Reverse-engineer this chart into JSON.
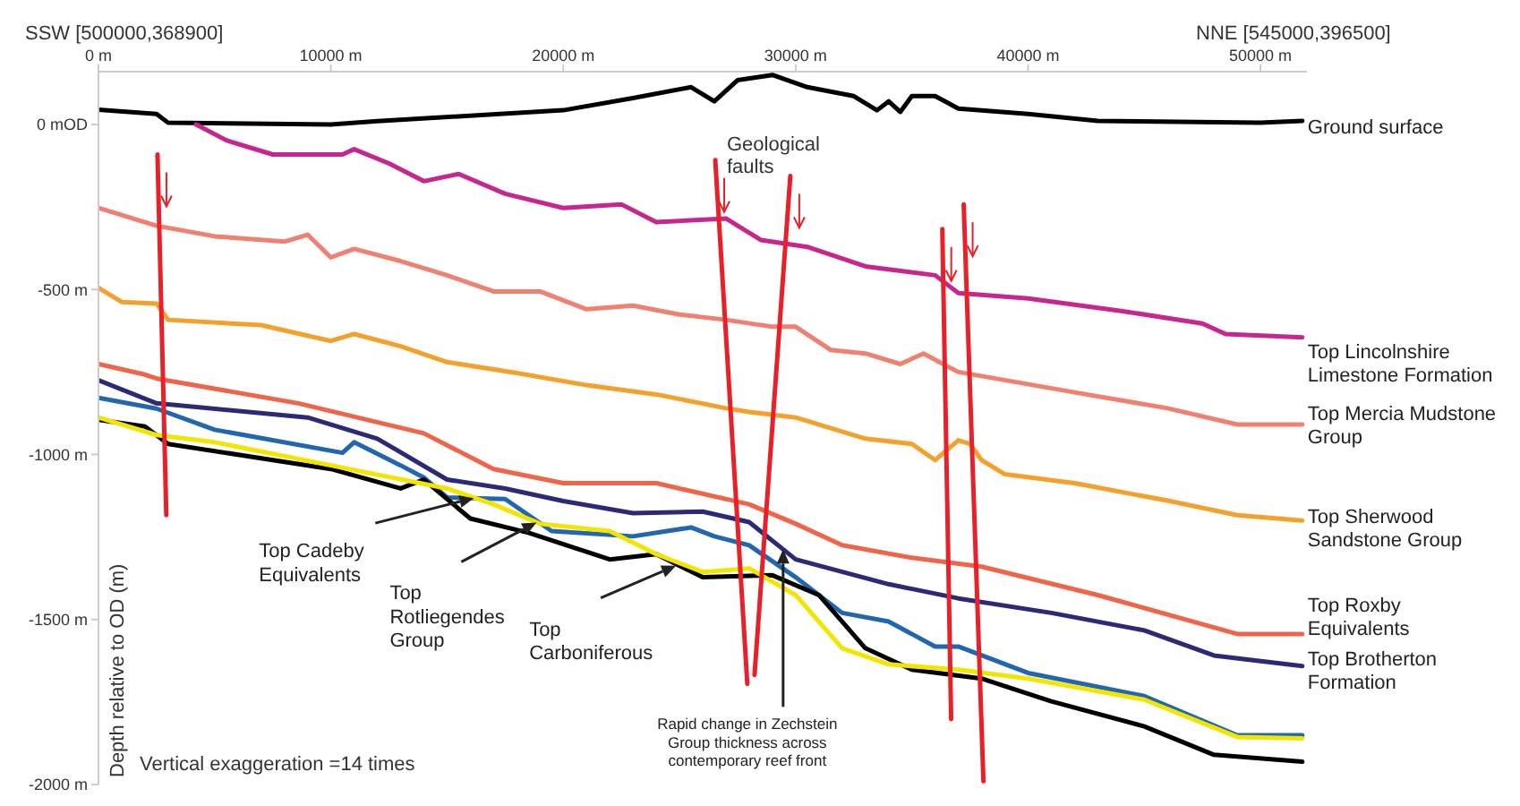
{
  "chart_data": {
    "type": "line",
    "ylabel": "Depth relative to OD (m)",
    "xlim": [
      0,
      52000
    ],
    "xticks": [
      {
        "value": 0,
        "label": "0 m"
      },
      {
        "value": 10000,
        "label": "10000 m"
      },
      {
        "value": 20000,
        "label": "20000 m"
      },
      {
        "value": 30000,
        "label": "30000 m"
      },
      {
        "value": 40000,
        "label": "40000 m"
      },
      {
        "value": 50000,
        "label": "50000 m"
      }
    ],
    "ylim": [
      -2000,
      160
    ],
    "yticks": [
      {
        "value": 0,
        "label": "0 mOD"
      },
      {
        "value": -500,
        "label": "-500 m"
      },
      {
        "value": -1000,
        "label": "-1000 m"
      },
      {
        "value": -1500,
        "label": "-1500 m"
      },
      {
        "value": -2000,
        "label": "-2000 m"
      }
    ],
    "series": [
      {
        "name": "Ground surface",
        "color": "#000000",
        "x": [
          0,
          2500,
          3000,
          10000,
          12000,
          20000,
          23000,
          25500,
          26500,
          27500,
          29000,
          30500,
          32500,
          33500,
          34000,
          34500,
          35000,
          36000,
          37000,
          40000,
          43000,
          50000,
          51800
        ],
        "values": [
          45,
          32,
          5,
          0,
          10,
          43,
          80,
          113,
          70,
          134,
          150,
          113,
          86,
          43,
          70,
          38,
          86,
          86,
          48,
          32,
          11,
          5,
          11
        ]
      },
      {
        "name": "Top Lincolnshire Limestone Formation",
        "color": "#c8268f",
        "x": [
          4200,
          5500,
          7500,
          10500,
          11000,
          12500,
          14000,
          15500,
          17500,
          20000,
          22500,
          24000,
          27000,
          28500,
          30500,
          33000,
          36000,
          37000,
          40000,
          44000,
          47500,
          48500,
          51800
        ],
        "values": [
          0,
          -48,
          -91,
          -91,
          -75,
          -118,
          -172,
          -150,
          -210,
          -253,
          -242,
          -296,
          -285,
          -350,
          -371,
          -430,
          -457,
          -511,
          -527,
          -565,
          -603,
          -635,
          -645
        ]
      },
      {
        "name": "Top Mercia Mudstone Group",
        "color": "#f08070",
        "x": [
          0,
          2500,
          5000,
          8000,
          9000,
          10000,
          11000,
          13000,
          15000,
          17000,
          19000,
          21000,
          23000,
          25000,
          27000,
          29000,
          30000,
          31500,
          33000,
          34500,
          35500,
          36500,
          37000,
          42500,
          46000,
          49000,
          51800
        ],
        "values": [
          -253,
          -307,
          -339,
          -355,
          -334,
          -403,
          -377,
          -414,
          -457,
          -506,
          -506,
          -560,
          -549,
          -576,
          -592,
          -613,
          -613,
          -683,
          -694,
          -726,
          -694,
          -732,
          -750,
          -818,
          -860,
          -909,
          -909
        ]
      },
      {
        "name": "Top Sherwood Sandstone Group",
        "color": "#f5a02a",
        "x": [
          0,
          1000,
          2500,
          3000,
          7000,
          10000,
          11000,
          13000,
          15000,
          18000,
          21000,
          24000,
          27000,
          28000,
          30000,
          33000,
          35000,
          36000,
          37000,
          37500,
          38000,
          39000,
          42000,
          46000,
          49000,
          51800
        ],
        "values": [
          -495,
          -538,
          -543,
          -592,
          -608,
          -656,
          -635,
          -672,
          -720,
          -753,
          -790,
          -818,
          -860,
          -871,
          -888,
          -952,
          -968,
          -1017,
          -957,
          -968,
          -1017,
          -1060,
          -1087,
          -1140,
          -1184,
          -1200
        ]
      },
      {
        "name": "Top Roxby Equivalents",
        "color": "#f0644a",
        "x": [
          0,
          2000,
          2500,
          8600,
          14000,
          17000,
          20000,
          24000,
          28000,
          30000,
          32000,
          35000,
          38000,
          43000,
          49000,
          51800
        ],
        "values": [
          -726,
          -758,
          -770,
          -845,
          -936,
          -1044,
          -1087,
          -1087,
          -1151,
          -1210,
          -1275,
          -1313,
          -1340,
          -1426,
          -1544,
          -1544
        ]
      },
      {
        "name": "Top Brotherton Formation",
        "color": "#2b2a78",
        "x": [
          0,
          2500,
          9000,
          12000,
          15000,
          17500,
          20000,
          23000,
          26000,
          28000,
          30000,
          34000,
          37000,
          41000,
          45000,
          48000,
          51800
        ],
        "values": [
          -775,
          -845,
          -888,
          -952,
          -1076,
          -1103,
          -1141,
          -1178,
          -1173,
          -1205,
          -1318,
          -1393,
          -1436,
          -1480,
          -1533,
          -1609,
          -1641
        ]
      },
      {
        "color": "#2166b0",
        "x": [
          0,
          2500,
          5000,
          10500,
          11000,
          13000,
          14000,
          15000,
          17500,
          19500,
          23000,
          25500,
          26500,
          28000,
          30000,
          32000,
          34000,
          36000,
          37000,
          40000,
          45000,
          49000,
          51800
        ],
        "values": [
          -828,
          -861,
          -925,
          -995,
          -963,
          -1033,
          -1070,
          -1130,
          -1135,
          -1232,
          -1248,
          -1221,
          -1248,
          -1275,
          -1372,
          -1480,
          -1506,
          -1582,
          -1582,
          -1662,
          -1732,
          -1851,
          -1851
        ]
      },
      {
        "color": "#000000",
        "x": [
          0,
          2000,
          3000,
          10000,
          13000,
          14000,
          16000,
          18500,
          22000,
          24000,
          26000,
          29000,
          31000,
          33000,
          35000,
          38000,
          41000,
          45000,
          48000,
          51800
        ],
        "values": [
          -895,
          -915,
          -968,
          -1044,
          -1103,
          -1076,
          -1194,
          -1237,
          -1318,
          -1302,
          -1372,
          -1366,
          -1426,
          -1587,
          -1652,
          -1679,
          -1748,
          -1824,
          -1910,
          -1931
        ]
      },
      {
        "color": "#f2e600",
        "x": [
          0,
          2500,
          5000,
          10000,
          15000,
          17000,
          19000,
          22000,
          24000,
          26000,
          28000,
          30000,
          32000,
          34000,
          37000,
          40000,
          45000,
          49000,
          51800
        ],
        "values": [
          -888,
          -941,
          -963,
          -1033,
          -1103,
          -1151,
          -1210,
          -1232,
          -1302,
          -1356,
          -1345,
          -1426,
          -1587,
          -1636,
          -1652,
          -1679,
          -1743,
          -1856,
          -1860
        ]
      },
      {
        "color": "#e8202a",
        "x": [
          2540,
          2920
        ],
        "values": [
          -91,
          -1184
        ]
      },
      {
        "color": "#e8202a",
        "x": [
          26540,
          27920
        ],
        "values": [
          -108,
          -1695
        ]
      },
      {
        "color": "#e8202a",
        "x": [
          29770,
          28230
        ],
        "values": [
          -156,
          -1668
        ]
      },
      {
        "color": "#e8202a",
        "x": [
          36310,
          36690
        ],
        "values": [
          -317,
          -1802
        ]
      },
      {
        "color": "#e8202a",
        "x": [
          37230,
          38080
        ],
        "values": [
          -242,
          -1990
        ]
      }
    ],
    "annotations": [
      "SSW [500000,368900]",
      "NNE [545000,396500]",
      "Geological faults",
      {
        "text": "Top Cadeby Equivalents",
        "x": 16150,
        "y": -1132
      },
      {
        "text": "Top Rotliegendes Group",
        "x": 18850,
        "y": -1206
      },
      {
        "text": "Top Carboniferous",
        "x": 24850,
        "y": -1337
      },
      {
        "text": "Rapid change in Zechstein Group thickness across contemporary reef front",
        "x": 29460,
        "y": -1287
      },
      "Vertical exaggeration =14 times"
    ]
  }
}
